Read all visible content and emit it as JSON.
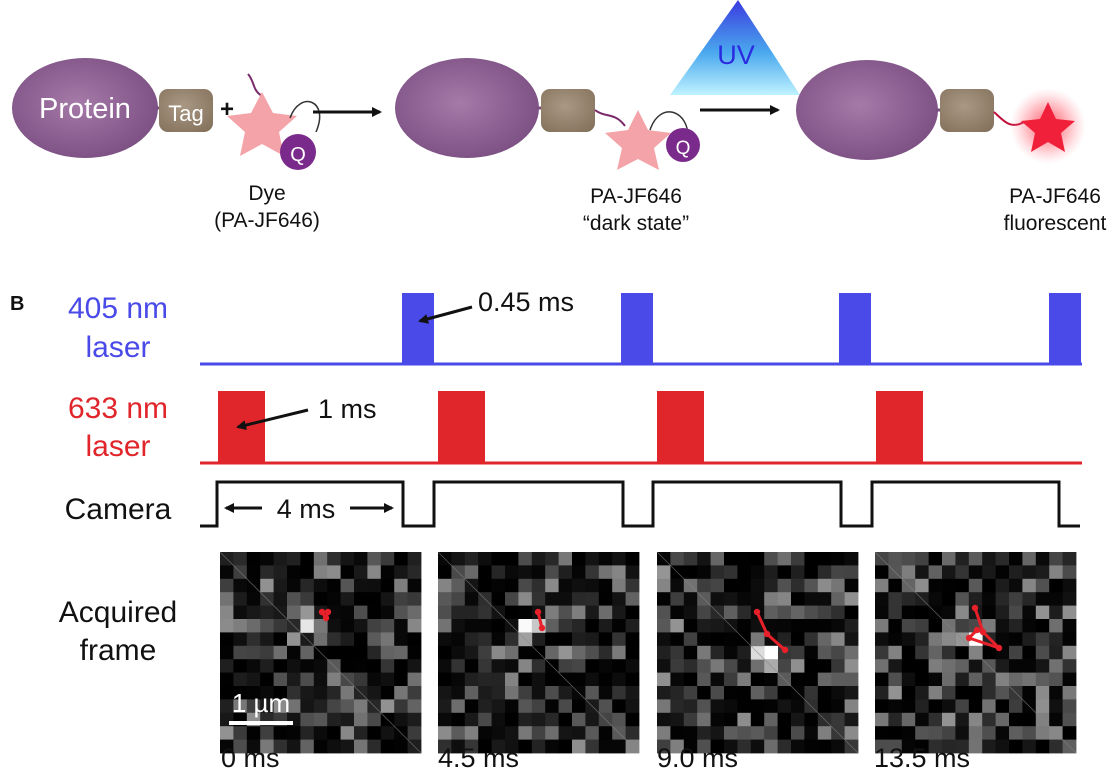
{
  "panel_a": {
    "protein_label": "Protein",
    "tag_label": "Tag",
    "plus": "+",
    "quencher_label": "Q",
    "uv_label": "UV",
    "dye_caption_line1": "Dye",
    "dye_caption_line2": "(PA-JF646)",
    "dark_caption_line1": "PA-JF646",
    "dark_caption_line2": "“dark state”",
    "fluor_caption_line1": "PA-JF646",
    "fluor_caption_line2": "fluorescent"
  },
  "panel_b": {
    "panel_label": "B",
    "laser405_line1": "405 nm",
    "laser405_line2": "laser",
    "laser405_color": "#4a4ae8",
    "laser633_line1": "633 nm",
    "laser633_line2": "laser",
    "laser633_color": "#e0252b",
    "pulse405_annotation": "0.45 ms",
    "pulse633_annotation": "1 ms",
    "camera_label": "Camera",
    "exposure_annotation": "4 ms",
    "acquired_line1": "Acquired",
    "acquired_line2": "frame",
    "scale_bar_label": "1 µm",
    "frame_times": [
      "0 ms",
      "4.5 ms",
      "9.0 ms",
      "13.5 ms"
    ],
    "track_color": "#e8202a"
  }
}
